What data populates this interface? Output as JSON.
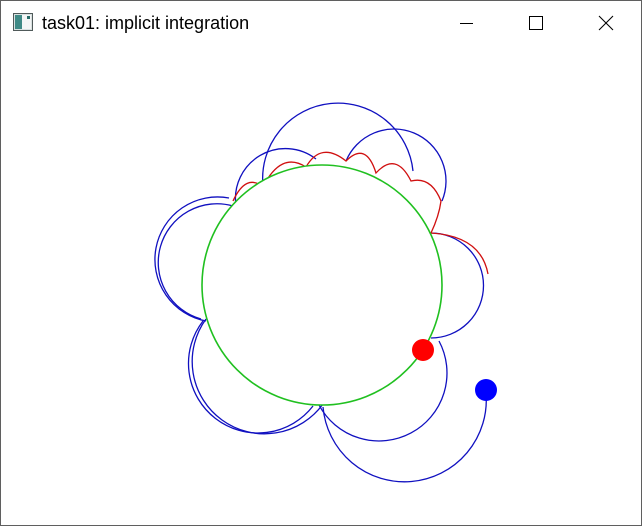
{
  "window": {
    "title": "task01: implicit integration",
    "app_icon": "app-window-icon",
    "controls": {
      "minimize_icon": "minimize-icon",
      "maximize_icon": "maximize-icon",
      "close_icon": "close-icon"
    }
  },
  "simulation": {
    "colors": {
      "blue_trajectory": "#1010c0",
      "red_trajectory": "#d01010",
      "obstacle_circle": "#20c020",
      "red_particle": "#ff0000",
      "blue_particle": "#0000ff"
    }
  }
}
